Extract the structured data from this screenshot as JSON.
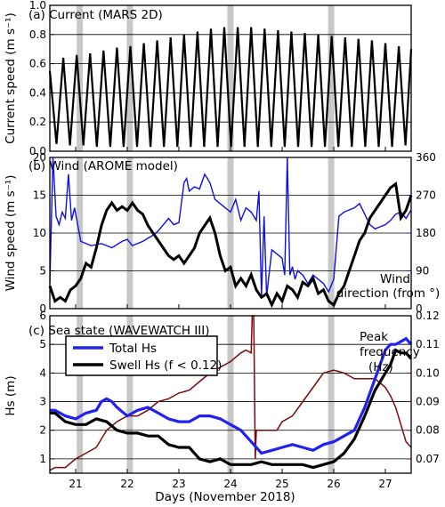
{
  "chart_data": [
    {
      "type": "line",
      "title": "(a) Current (MARS 2D)",
      "ylabel": "Current speed (m s⁻¹)",
      "ylim": [
        0.0,
        1.0
      ],
      "yticks": [
        0.0,
        0.2,
        0.4,
        0.6,
        0.8,
        1.0
      ],
      "xlim": [
        20.5,
        27.5
      ],
      "grid": "horizontal",
      "colors": {
        "line": "#000000"
      },
      "series": [
        {
          "x": [
            20.5,
            20.63,
            20.76,
            20.89,
            21.02,
            21.15,
            21.28,
            21.41,
            21.54,
            21.67,
            21.8,
            21.93,
            22.06,
            22.19,
            22.32,
            22.45,
            22.58,
            22.71,
            22.84,
            22.97,
            23.1,
            23.23,
            23.36,
            23.49,
            23.62,
            23.75,
            23.88,
            24.01,
            24.14,
            24.27,
            24.4,
            24.53,
            24.66,
            24.79,
            24.92,
            25.05,
            25.18,
            25.31,
            25.44,
            25.57,
            25.7,
            25.83,
            25.96,
            26.09,
            26.22,
            26.35,
            26.48,
            26.61,
            26.74,
            26.87,
            27.0,
            27.13,
            27.26,
            27.39,
            27.5
          ],
          "y": [
            0.55,
            0.05,
            0.64,
            0.04,
            0.66,
            0.04,
            0.67,
            0.03,
            0.69,
            0.03,
            0.71,
            0.03,
            0.72,
            0.03,
            0.74,
            0.03,
            0.76,
            0.03,
            0.78,
            0.03,
            0.8,
            0.03,
            0.82,
            0.03,
            0.84,
            0.03,
            0.85,
            0.03,
            0.85,
            0.03,
            0.85,
            0.03,
            0.84,
            0.03,
            0.83,
            0.03,
            0.82,
            0.03,
            0.81,
            0.03,
            0.8,
            0.03,
            0.79,
            0.03,
            0.78,
            0.03,
            0.77,
            0.03,
            0.76,
            0.03,
            0.74,
            0.03,
            0.72,
            0.04,
            0.7
          ]
        }
      ]
    },
    {
      "type": "line",
      "title": "(b) Wind (AROME model)",
      "ylabel": "Wind speed (m s⁻¹)",
      "ylim": [
        0,
        20
      ],
      "yticks": [
        0,
        5,
        10,
        15,
        20
      ],
      "y2label": "Wind direction (from °)",
      "y2lim": [
        0,
        360
      ],
      "y2ticks": [
        0,
        90,
        180,
        270,
        360
      ],
      "xlim": [
        20.5,
        27.5
      ],
      "grid": "horizontal",
      "colors": {
        "speed": "#000000",
        "direction": "#1010e0",
        "right_axis": "#1010e0"
      },
      "series": [
        {
          "axis": "left",
          "x": [
            20.5,
            20.6,
            20.7,
            20.8,
            20.9,
            21.0,
            21.1,
            21.2,
            21.3,
            21.4,
            21.5,
            21.6,
            21.7,
            21.8,
            21.9,
            22.0,
            22.1,
            22.2,
            22.3,
            22.4,
            22.5,
            22.6,
            22.7,
            22.8,
            22.9,
            23.0,
            23.1,
            23.2,
            23.3,
            23.4,
            23.5,
            23.6,
            23.7,
            23.8,
            23.9,
            24.0,
            24.1,
            24.2,
            24.3,
            24.4,
            24.5,
            24.6,
            24.7,
            24.8,
            24.9,
            25.0,
            25.1,
            25.2,
            25.3,
            25.4,
            25.5,
            25.6,
            25.7,
            25.8,
            25.9,
            26.0,
            26.1,
            26.2,
            26.3,
            26.4,
            26.5,
            26.6,
            26.7,
            26.8,
            26.9,
            27.0,
            27.1,
            27.2,
            27.3,
            27.4,
            27.5
          ],
          "y": [
            3,
            1,
            1.5,
            1,
            2.5,
            3,
            4,
            6,
            5.5,
            8,
            11,
            13,
            14,
            13,
            13.5,
            13,
            14,
            13,
            12.5,
            11,
            10,
            9,
            8,
            7,
            6.5,
            7,
            6,
            7,
            8,
            10,
            11,
            12,
            10,
            7,
            5,
            5.5,
            3,
            4,
            3,
            4.5,
            2.5,
            1.5,
            2,
            0.5,
            2,
            1,
            3,
            2.5,
            1.5,
            3.5,
            3,
            4,
            2,
            2.5,
            1,
            0.5,
            2,
            3,
            5,
            7,
            9,
            10,
            12,
            13,
            14,
            15,
            16,
            16.5,
            12,
            13,
            15
          ]
        },
        {
          "axis": "right",
          "x": [
            20.5,
            20.56,
            20.62,
            20.68,
            20.74,
            20.8,
            20.86,
            20.92,
            20.98,
            21.04,
            21.1,
            21.3,
            21.5,
            21.7,
            21.9,
            22.0,
            22.1,
            22.3,
            22.5,
            22.6,
            22.7,
            22.8,
            22.9,
            23.0,
            23.1,
            23.15,
            23.2,
            23.3,
            23.4,
            23.5,
            23.6,
            23.7,
            23.8,
            23.9,
            24.0,
            24.1,
            24.2,
            24.3,
            24.4,
            24.5,
            24.55,
            24.6,
            24.65,
            24.7,
            24.8,
            24.9,
            25.0,
            25.05,
            25.1,
            25.15,
            25.2,
            25.25,
            25.3,
            25.4,
            25.5,
            25.6,
            25.7,
            25.8,
            25.9,
            26.0,
            26.1,
            26.2,
            26.3,
            26.4,
            26.5,
            26.6,
            26.7,
            26.8,
            26.9,
            27.0,
            27.1,
            27.2,
            27.3,
            27.4,
            27.5
          ],
          "y": [
            60,
            360,
            220,
            200,
            230,
            215,
            320,
            210,
            240,
            200,
            160,
            150,
            155,
            145,
            160,
            165,
            150,
            160,
            175,
            185,
            200,
            215,
            200,
            205,
            300,
            310,
            280,
            290,
            285,
            320,
            300,
            260,
            250,
            240,
            230,
            260,
            210,
            240,
            230,
            210,
            280,
            30,
            220,
            30,
            140,
            130,
            120,
            80,
            360,
            80,
            100,
            70,
            90,
            80,
            60,
            80,
            70,
            60,
            40,
            70,
            220,
            230,
            235,
            240,
            250,
            225,
            200,
            190,
            195,
            200,
            210,
            225,
            230,
            215,
            235
          ]
        }
      ]
    },
    {
      "type": "line",
      "title": "(c) Sea state (WAVEWATCH III)",
      "ylabel": "Hs (m)",
      "ylim": [
        0.5,
        6
      ],
      "yticks": [
        1,
        2,
        3,
        4,
        5,
        6
      ],
      "y2label": "Peak frequency (Hz)",
      "y2lim": [
        0.065,
        0.12
      ],
      "y2ticks": [
        0.07,
        0.08,
        0.09,
        0.1,
        0.11,
        0.12
      ],
      "xlabel": "Days (November 2018)",
      "xlim": [
        20.5,
        27.5
      ],
      "xticks": [
        21,
        22,
        23,
        24,
        25,
        26,
        27
      ],
      "grid": "horizontal",
      "legend": "top-left",
      "colors": {
        "total": "#2222ee",
        "swell": "#000000",
        "peak": "#7a0a0a",
        "right_axis": "#7a0a0a"
      },
      "series": [
        {
          "name": "Total Hs",
          "axis": "left",
          "x": [
            20.5,
            20.6,
            20.8,
            21.0,
            21.2,
            21.4,
            21.5,
            21.6,
            21.7,
            21.8,
            22.0,
            22.2,
            22.4,
            22.6,
            22.8,
            23.0,
            23.2,
            23.4,
            23.6,
            23.8,
            24.0,
            24.2,
            24.4,
            24.6,
            24.8,
            25.0,
            25.2,
            25.4,
            25.6,
            25.8,
            26.0,
            26.2,
            26.4,
            26.6,
            26.8,
            27.0,
            27.1,
            27.2,
            27.3,
            27.4,
            27.5
          ],
          "y": [
            2.7,
            2.7,
            2.5,
            2.4,
            2.6,
            2.7,
            3.0,
            3.1,
            3.0,
            2.8,
            2.5,
            2.7,
            2.8,
            2.6,
            2.4,
            2.3,
            2.3,
            2.5,
            2.5,
            2.4,
            2.2,
            2.0,
            1.6,
            1.2,
            1.3,
            1.4,
            1.5,
            1.4,
            1.3,
            1.5,
            1.6,
            1.8,
            2.0,
            2.8,
            3.8,
            4.8,
            5.0,
            5.0,
            5.1,
            5.2,
            5.0
          ]
        },
        {
          "name": "Swell Hs (f < 0.12)",
          "axis": "left",
          "x": [
            20.5,
            20.6,
            20.8,
            21.0,
            21.2,
            21.4,
            21.6,
            21.8,
            22.0,
            22.2,
            22.4,
            22.6,
            22.8,
            23.0,
            23.2,
            23.4,
            23.6,
            23.8,
            24.0,
            24.2,
            24.4,
            24.6,
            24.8,
            25.0,
            25.2,
            25.4,
            25.6,
            25.8,
            26.0,
            26.2,
            26.4,
            26.6,
            26.8,
            27.0,
            27.1,
            27.2,
            27.3,
            27.4,
            27.5
          ],
          "y": [
            2.6,
            2.6,
            2.3,
            2.2,
            2.2,
            2.4,
            2.3,
            2.0,
            1.9,
            1.9,
            1.8,
            1.8,
            1.5,
            1.4,
            1.4,
            1.0,
            0.9,
            1.0,
            0.8,
            0.8,
            0.8,
            0.9,
            0.8,
            0.8,
            0.8,
            0.8,
            0.7,
            0.8,
            0.9,
            1.2,
            1.7,
            2.5,
            3.4,
            4.0,
            4.3,
            4.8,
            4.7,
            4.7,
            4.5
          ]
        },
        {
          "name": "Peak frequency",
          "axis": "right",
          "x": [
            20.5,
            20.6,
            20.8,
            21.0,
            21.2,
            21.4,
            21.6,
            21.8,
            22.0,
            22.2,
            22.4,
            22.6,
            22.8,
            23.0,
            23.2,
            23.4,
            23.6,
            23.8,
            24.0,
            24.2,
            24.3,
            24.4,
            24.42,
            24.45,
            24.48,
            24.5,
            24.7,
            24.9,
            25.0,
            25.2,
            25.4,
            25.6,
            25.8,
            26.0,
            26.2,
            26.4,
            26.6,
            26.8,
            27.0,
            27.1,
            27.2,
            27.3,
            27.4,
            27.5
          ],
          "y": [
            0.066,
            0.067,
            0.067,
            0.07,
            0.072,
            0.074,
            0.08,
            0.083,
            0.085,
            0.085,
            0.087,
            0.09,
            0.091,
            0.093,
            0.094,
            0.097,
            0.1,
            0.102,
            0.104,
            0.107,
            0.108,
            0.107,
            0.12,
            0.12,
            0.07,
            0.08,
            0.08,
            0.08,
            0.083,
            0.085,
            0.09,
            0.095,
            0.1,
            0.101,
            0.1,
            0.098,
            0.098,
            0.098,
            0.095,
            0.092,
            0.088,
            0.082,
            0.076,
            0.074
          ]
        }
      ]
    }
  ],
  "gray_bands": [
    21.08,
    22.05,
    24.0,
    25.95
  ]
}
